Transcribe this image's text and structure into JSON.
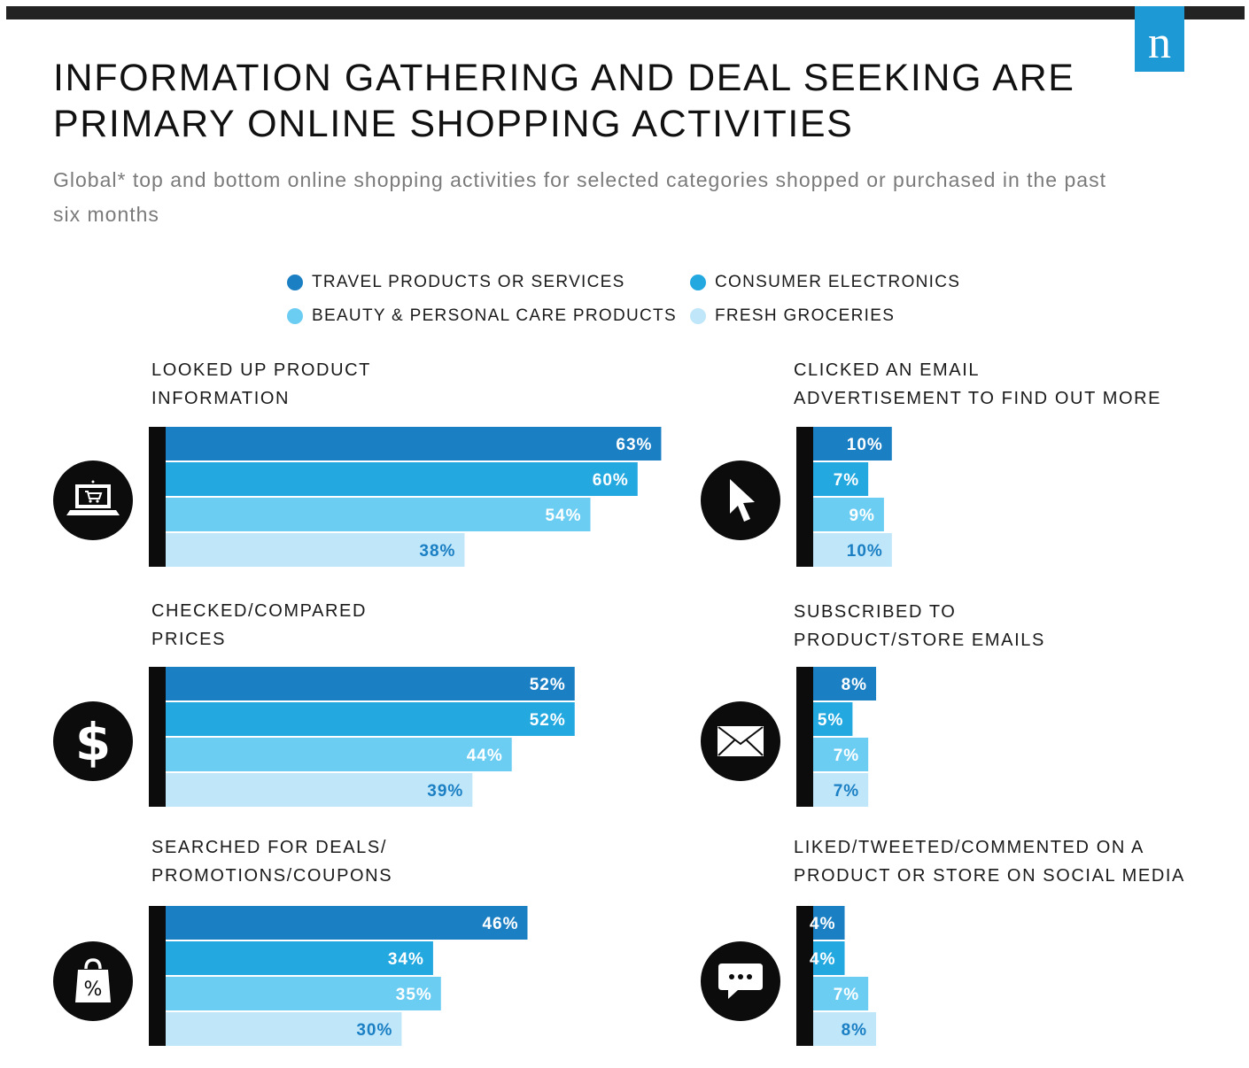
{
  "brand": {
    "logo_letter": "n"
  },
  "title_lines": [
    "INFORMATION GATHERING AND DEAL SEEKING ARE",
    "PRIMARY ONLINE SHOPPING ACTIVITIES"
  ],
  "subtitle": "Global* top and bottom online shopping activities for selected categories shopped or purchased in the past six months",
  "legend": [
    {
      "label": "TRAVEL PRODUCTS OR SERVICES",
      "color": "#1b7fc4"
    },
    {
      "label": "CONSUMER ELECTRONICS",
      "color": "#23a8e0"
    },
    {
      "label": "BEAUTY & PERSONAL CARE PRODUCTS",
      "color": "#6ccdf3"
    },
    {
      "label": "FRESH GROCERIES",
      "color": "#bfe6f9"
    }
  ],
  "chart_data": [
    {
      "type": "bar",
      "orientation": "horizontal",
      "title_lines": [
        "LOOKED UP PRODUCT",
        "INFORMATION"
      ],
      "icon": "laptop-cart-icon",
      "categories": [
        "TRAVEL PRODUCTS OR SERVICES",
        "CONSUMER ELECTRONICS",
        "BEAUTY & PERSONAL CARE PRODUCTS",
        "FRESH GROCERIES"
      ],
      "values": [
        63,
        60,
        54,
        38
      ],
      "labels": [
        "63%",
        "60%",
        "54%",
        "38%"
      ],
      "unit": "%"
    },
    {
      "type": "bar",
      "orientation": "horizontal",
      "title_lines": [
        "CLICKED AN EMAIL",
        "ADVERTISEMENT TO FIND OUT MORE"
      ],
      "icon": "cursor-icon",
      "categories": [
        "TRAVEL PRODUCTS OR SERVICES",
        "CONSUMER ELECTRONICS",
        "BEAUTY & PERSONAL CARE PRODUCTS",
        "FRESH GROCERIES"
      ],
      "values": [
        10,
        7,
        9,
        10
      ],
      "labels": [
        "10%",
        "7%",
        "9%",
        "10%"
      ],
      "unit": "%"
    },
    {
      "type": "bar",
      "orientation": "horizontal",
      "title_lines": [
        "CHECKED/COMPARED",
        "PRICES"
      ],
      "icon": "dollar-icon",
      "categories": [
        "TRAVEL PRODUCTS OR SERVICES",
        "CONSUMER ELECTRONICS",
        "BEAUTY & PERSONAL CARE PRODUCTS",
        "FRESH GROCERIES"
      ],
      "values": [
        52,
        52,
        44,
        39
      ],
      "labels": [
        "52%",
        "52%",
        "44%",
        "39%"
      ],
      "unit": "%"
    },
    {
      "type": "bar",
      "orientation": "horizontal",
      "title_lines": [
        "SUBSCRIBED TO",
        "PRODUCT/STORE EMAILS"
      ],
      "icon": "envelope-icon",
      "categories": [
        "TRAVEL PRODUCTS OR SERVICES",
        "CONSUMER ELECTRONICS",
        "BEAUTY & PERSONAL CARE PRODUCTS",
        "FRESH GROCERIES"
      ],
      "values": [
        8,
        5,
        7,
        7
      ],
      "labels": [
        "8%",
        "5%",
        "7%",
        "7%"
      ],
      "unit": "%"
    },
    {
      "type": "bar",
      "orientation": "horizontal",
      "title_lines": [
        "SEARCHED FOR DEALS/",
        "PROMOTIONS/COUPONS"
      ],
      "icon": "shopping-bag-percent-icon",
      "categories": [
        "TRAVEL PRODUCTS OR SERVICES",
        "CONSUMER ELECTRONICS",
        "BEAUTY & PERSONAL CARE PRODUCTS",
        "FRESH GROCERIES"
      ],
      "values": [
        46,
        34,
        35,
        30
      ],
      "labels": [
        "46%",
        "34%",
        "35%",
        "30%"
      ],
      "unit": "%"
    },
    {
      "type": "bar",
      "orientation": "horizontal",
      "title_lines": [
        "LIKED/TWEETED/COMMENTED ON A",
        "PRODUCT OR STORE ON SOCIAL MEDIA"
      ],
      "icon": "chat-bubble-icon",
      "categories": [
        "TRAVEL PRODUCTS OR SERVICES",
        "CONSUMER ELECTRONICS",
        "BEAUTY & PERSONAL CARE PRODUCTS",
        "FRESH GROCERIES"
      ],
      "values": [
        4,
        4,
        7,
        8
      ],
      "labels": [
        "4%",
        "4%",
        "7%",
        "8%"
      ],
      "unit": "%"
    }
  ]
}
